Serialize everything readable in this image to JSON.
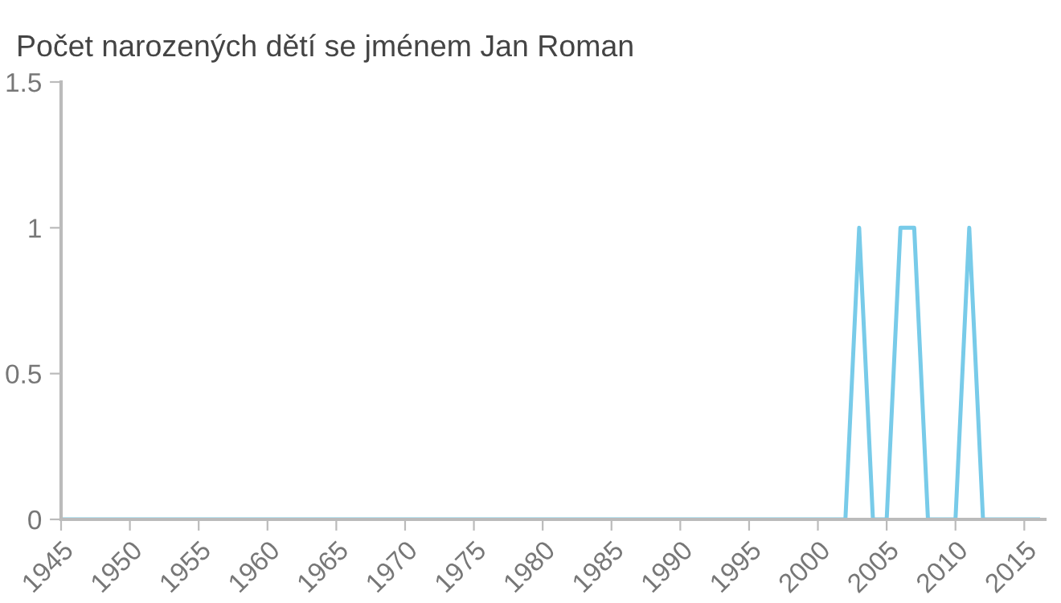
{
  "chart_data": {
    "type": "line",
    "title": "Počet narozených dětí se jménem Jan Roman",
    "x": [
      1945,
      1946,
      1947,
      1948,
      1949,
      1950,
      1951,
      1952,
      1953,
      1954,
      1955,
      1956,
      1957,
      1958,
      1959,
      1960,
      1961,
      1962,
      1963,
      1964,
      1965,
      1966,
      1967,
      1968,
      1969,
      1970,
      1971,
      1972,
      1973,
      1974,
      1975,
      1976,
      1977,
      1978,
      1979,
      1980,
      1981,
      1982,
      1983,
      1984,
      1985,
      1986,
      1987,
      1988,
      1989,
      1990,
      1991,
      1992,
      1993,
      1994,
      1995,
      1996,
      1997,
      1998,
      1999,
      2000,
      2001,
      2002,
      2003,
      2004,
      2005,
      2006,
      2007,
      2008,
      2009,
      2010,
      2011,
      2012,
      2013,
      2014,
      2015,
      2016
    ],
    "series": [
      {
        "color": "#78cbe9",
        "values": [
          0,
          0,
          0,
          0,
          0,
          0,
          0,
          0,
          0,
          0,
          0,
          0,
          0,
          0,
          0,
          0,
          0,
          0,
          0,
          0,
          0,
          0,
          0,
          0,
          0,
          0,
          0,
          0,
          0,
          0,
          0,
          0,
          0,
          0,
          0,
          0,
          0,
          0,
          0,
          0,
          0,
          0,
          0,
          0,
          0,
          0,
          0,
          0,
          0,
          0,
          0,
          0,
          0,
          0,
          0,
          0,
          0,
          0,
          1,
          0,
          0,
          1,
          1,
          0,
          0,
          0,
          1,
          0,
          0,
          0,
          0,
          0
        ]
      }
    ],
    "xlim": [
      1945,
      2016.5
    ],
    "xticks": [
      1945,
      1950,
      1955,
      1960,
      1965,
      1970,
      1975,
      1980,
      1985,
      1990,
      1995,
      2000,
      2005,
      2010,
      2015
    ],
    "ylim": [
      0,
      1.5
    ],
    "yticks": [
      0,
      0.5,
      1,
      1.5
    ],
    "grid": false,
    "legend": false,
    "marker": "none",
    "line_style": "solid"
  }
}
